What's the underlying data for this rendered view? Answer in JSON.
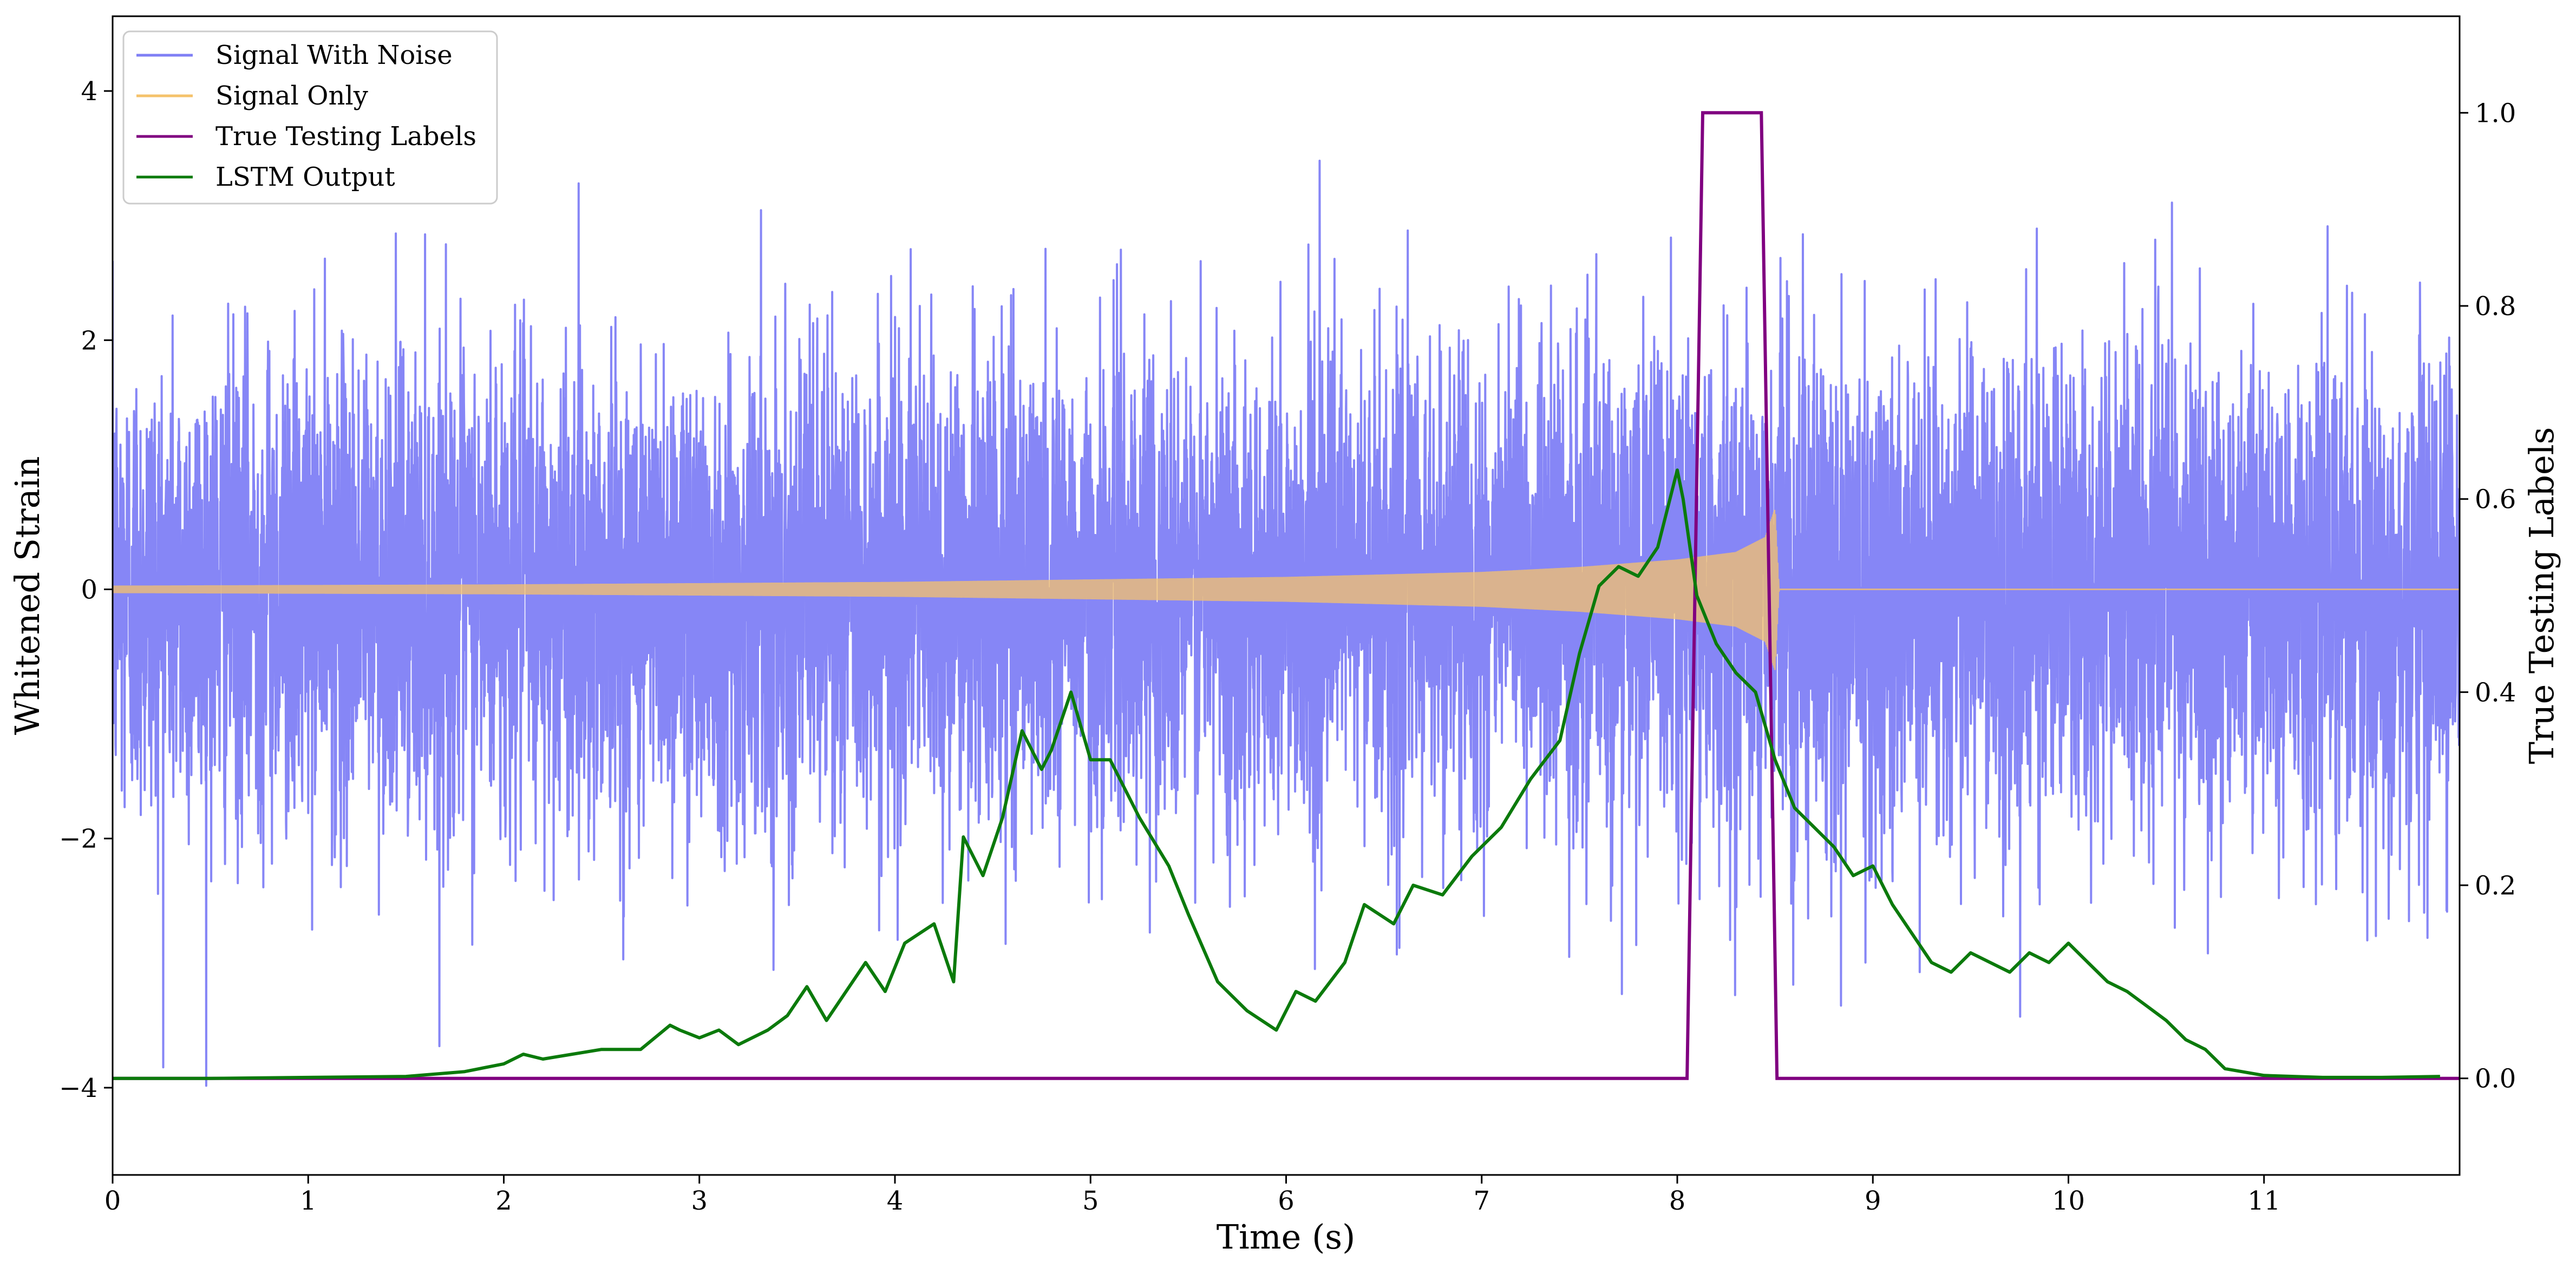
{
  "chart_data": {
    "type": "line",
    "xlabel": "Time (s)",
    "ylabel_left": "Whitened Strain",
    "ylabel_right": "True Testing Labels",
    "xlim": [
      0,
      12
    ],
    "ylim_left": [
      -4.7,
      4.6
    ],
    "ylim_right": [
      -0.1,
      1.1
    ],
    "x_ticks": [
      0,
      1,
      2,
      3,
      4,
      5,
      6,
      7,
      8,
      9,
      10,
      11
    ],
    "y_left_ticks": [
      -4,
      -2,
      0,
      2,
      4
    ],
    "y_right_ticks": [
      0.0,
      0.2,
      0.4,
      0.6,
      0.8,
      1.0
    ],
    "grid": false,
    "legend_position": "top-left",
    "series": [
      {
        "name": "Signal With Noise",
        "axis": "left",
        "color": "#7f7ff5",
        "kind": "noise",
        "description_stats": {
          "std": 0.95,
          "min": -4.15,
          "max": 4.3
        }
      },
      {
        "name": "Signal Only",
        "axis": "left",
        "color": "#f5c26b",
        "kind": "chirp",
        "envelope": [
          [
            0,
            0.03
          ],
          [
            2,
            0.04
          ],
          [
            4,
            0.06
          ],
          [
            6,
            0.1
          ],
          [
            7,
            0.14
          ],
          [
            7.5,
            0.18
          ],
          [
            8,
            0.24
          ],
          [
            8.3,
            0.3
          ],
          [
            8.45,
            0.42
          ],
          [
            8.5,
            0.65
          ],
          [
            8.52,
            0.0
          ],
          [
            12,
            0.0
          ]
        ]
      },
      {
        "name": "True Testing Labels",
        "axis": "right",
        "color": "#800080",
        "x": [
          0,
          8.05,
          8.13,
          8.43,
          8.51,
          12
        ],
        "y": [
          0,
          0,
          1,
          1,
          0,
          0
        ]
      },
      {
        "name": "LSTM Output",
        "axis": "right",
        "color": "#0b7a0b",
        "x": [
          0,
          0.5,
          1.0,
          1.5,
          1.8,
          2.0,
          2.1,
          2.2,
          2.5,
          2.7,
          2.85,
          2.9,
          3.0,
          3.1,
          3.2,
          3.35,
          3.45,
          3.55,
          3.65,
          3.75,
          3.85,
          3.95,
          4.05,
          4.2,
          4.3,
          4.35,
          4.45,
          4.55,
          4.65,
          4.75,
          4.8,
          4.9,
          5.0,
          5.1,
          5.25,
          5.4,
          5.5,
          5.65,
          5.8,
          5.95,
          6.05,
          6.15,
          6.3,
          6.4,
          6.55,
          6.65,
          6.8,
          6.95,
          7.1,
          7.25,
          7.4,
          7.5,
          7.6,
          7.7,
          7.8,
          7.9,
          8.0,
          8.03,
          8.1,
          8.2,
          8.3,
          8.4,
          8.5,
          8.6,
          8.7,
          8.8,
          8.9,
          9.0,
          9.1,
          9.2,
          9.3,
          9.4,
          9.5,
          9.6,
          9.7,
          9.8,
          9.9,
          10.0,
          10.1,
          10.2,
          10.3,
          10.4,
          10.5,
          10.6,
          10.7,
          10.8,
          11.0,
          11.3,
          11.6,
          11.9
        ],
        "y": [
          0.0,
          0.0,
          0.001,
          0.002,
          0.007,
          0.015,
          0.025,
          0.02,
          0.03,
          0.03,
          0.055,
          0.05,
          0.042,
          0.05,
          0.035,
          0.05,
          0.065,
          0.095,
          0.06,
          0.09,
          0.12,
          0.09,
          0.14,
          0.16,
          0.1,
          0.25,
          0.21,
          0.27,
          0.36,
          0.32,
          0.34,
          0.4,
          0.33,
          0.33,
          0.27,
          0.22,
          0.17,
          0.1,
          0.07,
          0.05,
          0.09,
          0.08,
          0.12,
          0.18,
          0.16,
          0.2,
          0.19,
          0.23,
          0.26,
          0.31,
          0.35,
          0.44,
          0.51,
          0.53,
          0.52,
          0.55,
          0.63,
          0.6,
          0.5,
          0.45,
          0.42,
          0.4,
          0.33,
          0.28,
          0.26,
          0.24,
          0.21,
          0.22,
          0.18,
          0.15,
          0.12,
          0.11,
          0.13,
          0.12,
          0.11,
          0.13,
          0.12,
          0.14,
          0.12,
          0.1,
          0.09,
          0.075,
          0.06,
          0.04,
          0.03,
          0.01,
          0.003,
          0.001,
          0.001,
          0.002
        ]
      }
    ]
  },
  "legend": {
    "items": [
      {
        "label": "Signal With Noise",
        "color": "#7f7ff5"
      },
      {
        "label": "Signal Only",
        "color": "#f5c26b"
      },
      {
        "label": "True Testing Labels",
        "color": "#800080"
      },
      {
        "label": "LSTM Output",
        "color": "#0b7a0b"
      }
    ]
  }
}
